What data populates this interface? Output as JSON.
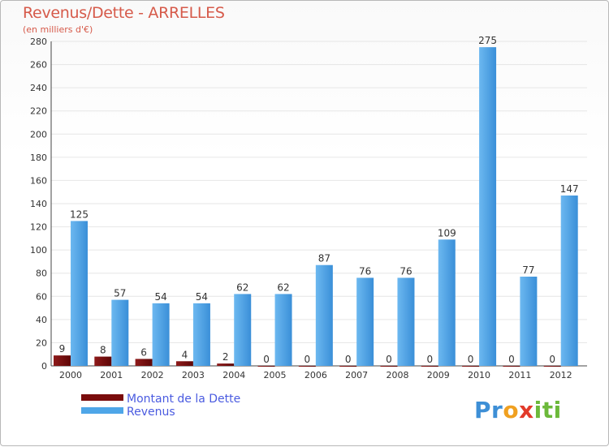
{
  "chart_data": {
    "type": "bar",
    "title": "Revenus/Dette - ARRELLES",
    "subtitle": "(en milliers d'€)",
    "categories": [
      "2000",
      "2001",
      "2002",
      "2003",
      "2004",
      "2005",
      "2006",
      "2007",
      "2008",
      "2009",
      "2010",
      "2011",
      "2012"
    ],
    "series": [
      {
        "name": "Montant de la Dette",
        "color": "#7a0c0c",
        "values": [
          9,
          8,
          6,
          4,
          2,
          0,
          0,
          0,
          0,
          0,
          0,
          0,
          0
        ]
      },
      {
        "name": "Revenus",
        "color": "#4ea6e8",
        "values": [
          125,
          57,
          54,
          54,
          62,
          62,
          87,
          76,
          76,
          109,
          275,
          77,
          147
        ]
      }
    ],
    "ylim": [
      0,
      280
    ],
    "yticks": [
      0,
      20,
      40,
      60,
      80,
      100,
      120,
      140,
      160,
      180,
      200,
      220,
      240,
      260,
      280
    ],
    "grid": true,
    "legend_position": "bottom-left"
  },
  "brand": {
    "logo_letters": [
      {
        "ch": "P",
        "color": "#3d8fd6"
      },
      {
        "ch": "r",
        "color": "#3d8fd6"
      },
      {
        "ch": "o",
        "color": "#f0a020"
      },
      {
        "ch": "x",
        "color": "#e23a2a"
      },
      {
        "ch": "i",
        "color": "#6cb93a"
      },
      {
        "ch": "t",
        "color": "#6cb93a"
      },
      {
        "ch": "i",
        "color": "#6cb93a"
      }
    ]
  }
}
